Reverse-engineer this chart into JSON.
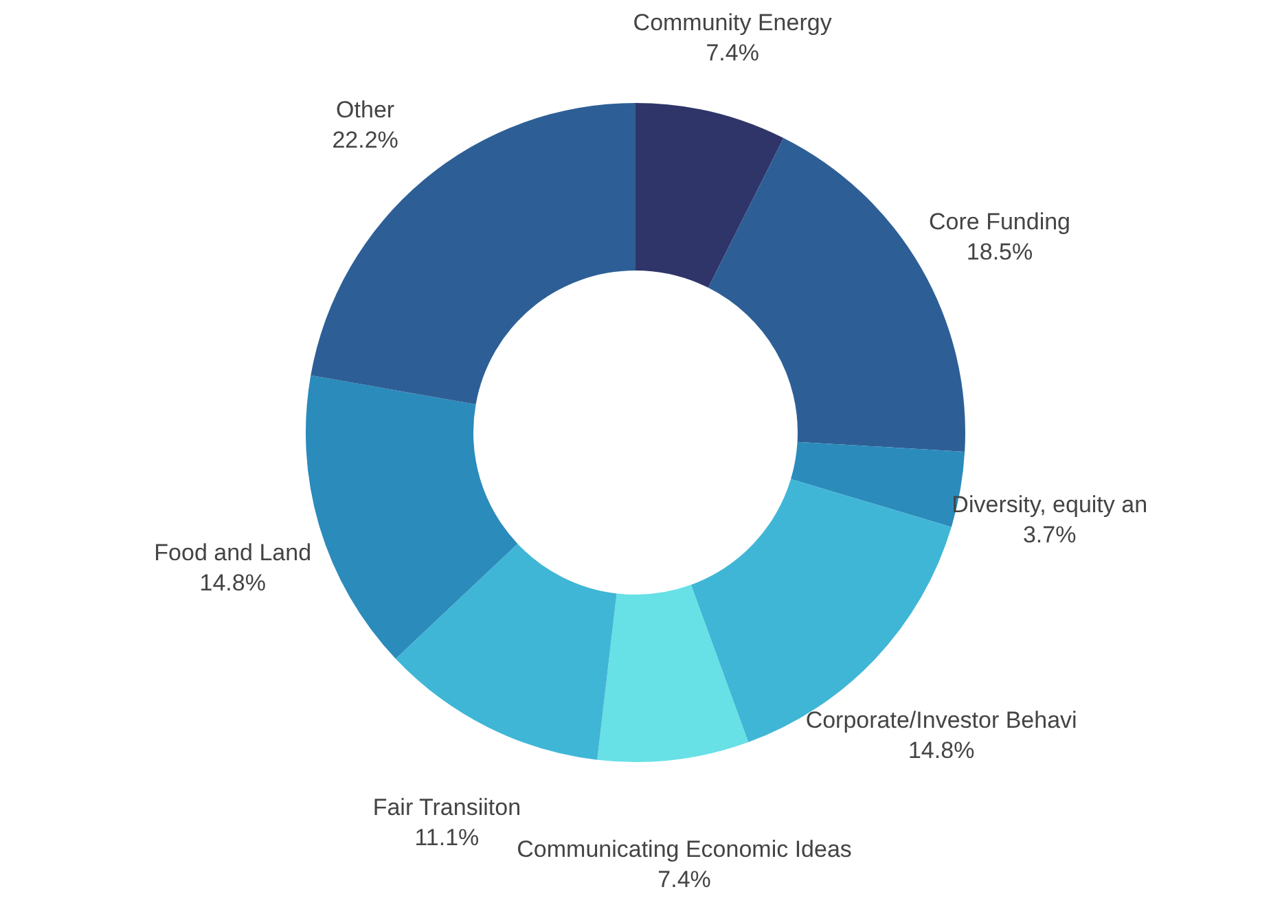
{
  "chart_data": {
    "type": "donut",
    "categories": [
      "Community Energy",
      "Core Funding",
      "Diversity, equity an",
      "Corporate/Investor Behavi",
      "Communicating Economic Ideas",
      "Fair Transiiton",
      "Food and Land",
      "Other"
    ],
    "values": [
      7.4,
      18.5,
      3.7,
      14.8,
      7.4,
      11.1,
      14.8,
      22.2
    ],
    "value_labels": [
      "7.4%",
      "18.5%",
      "3.7%",
      "14.8%",
      "7.4%",
      "11.1%",
      "14.8%",
      "22.2%"
    ],
    "colors": [
      "#2f3569",
      "#2d5f96",
      "#2b8bbb",
      "#40b6d6",
      "#67e0e6",
      "#40b6d6",
      "#2b8bbb",
      "#2d5f96"
    ]
  }
}
